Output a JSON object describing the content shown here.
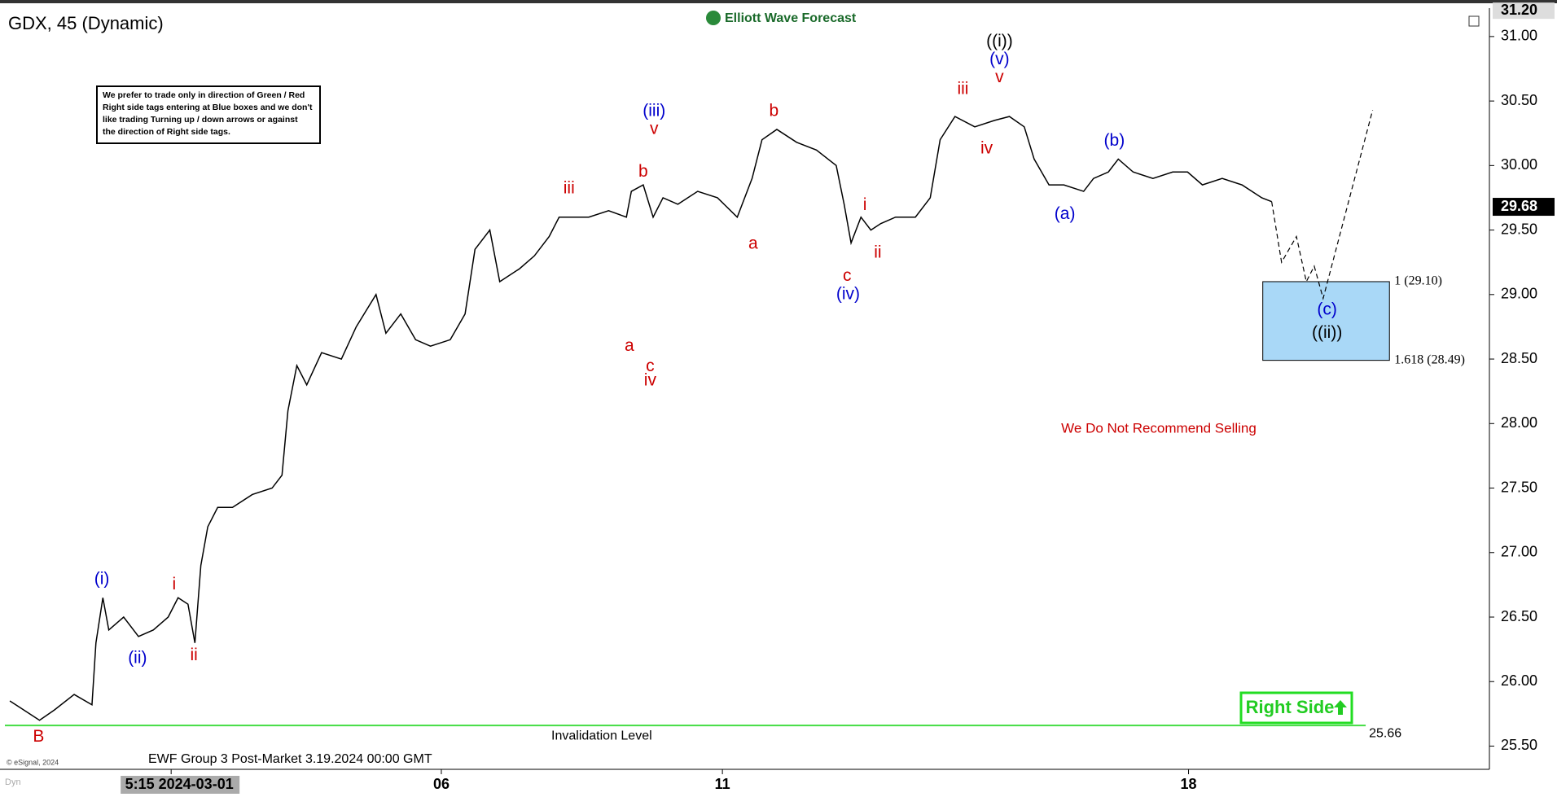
{
  "chart_data": {
    "type": "line",
    "title": "GDX, 45 (Dynamic)",
    "logo": "Elliott Wave Forecast",
    "note": [
      "We prefer to trade only in direction of Green / Red",
      "Right side tags entering at Blue boxes and we don't",
      "like trading Turning up / down arrows or against",
      "the direction of Right side tags."
    ],
    "recommendation": "We Do Not Recommend Selling",
    "right_side": "Right Side",
    "footer": "EWF Group 3 Post-Market 3.19.2024 00:00 GMT",
    "copyright": "© eSignal, 2024",
    "mode": "Dyn",
    "color": "#000000",
    "x": [
      0.5,
      1.5,
      3.5,
      5,
      7,
      8.8,
      9.2,
      9.9,
      10.5,
      12,
      13.5,
      15,
      16.5,
      17.5,
      18.5,
      19.2,
      19.8,
      20.5,
      21.5,
      23,
      25,
      27,
      28,
      28.6,
      29.5,
      30.5,
      32,
      34,
      35.5,
      37.5,
      38.5,
      40,
      41.5,
      43,
      45,
      46.5,
      47.5,
      49,
      50,
      52,
      53.5,
      55,
      56,
      57.5,
      59,
      61,
      62.8,
      63.3,
      64.5,
      65.5,
      66.5,
      68,
      70,
      72,
      74,
      75.5,
      76.5,
      78,
      80,
      82,
      84,
      84.8,
      85.5,
      86.5,
      87.5,
      88.5,
      90,
      92,
      93.5,
      94.5,
      96,
      98,
      100,
      101.5,
      103,
      104,
      105.5,
      107,
      109,
      110,
      111.5,
      112.5,
      114,
      116,
      118,
      119.5,
      121,
      123,
      125,
      127,
      128
    ],
    "values": [
      25.85,
      25.8,
      25.7,
      25.78,
      25.9,
      25.82,
      26.3,
      26.65,
      26.4,
      26.5,
      26.35,
      26.4,
      26.5,
      26.65,
      26.6,
      26.3,
      26.9,
      27.2,
      27.35,
      27.35,
      27.45,
      27.5,
      27.6,
      28.1,
      28.45,
      28.3,
      28.55,
      28.5,
      28.75,
      29.0,
      28.7,
      28.85,
      28.65,
      28.6,
      28.65,
      28.85,
      29.35,
      29.5,
      29.1,
      29.2,
      29.3,
      29.45,
      29.6,
      29.6,
      29.6,
      29.65,
      29.6,
      29.8,
      29.85,
      29.6,
      29.75,
      29.7,
      29.8,
      29.75,
      29.6,
      29.9,
      30.2,
      30.28,
      30.18,
      30.12,
      30.0,
      29.7,
      29.4,
      29.6,
      29.5,
      29.55,
      29.6,
      29.6,
      29.75,
      30.2,
      30.38,
      30.3,
      30.35,
      30.38,
      30.3,
      30.05,
      29.85,
      29.85,
      29.8,
      29.9,
      29.95,
      30.05,
      29.95,
      29.9,
      29.95,
      29.95,
      29.85,
      29.9,
      29.85,
      29.75,
      29.72
    ],
    "projection": {
      "x": [
        128,
        129,
        130.5,
        131.5,
        132.3,
        133.2,
        138.2
      ],
      "values": [
        29.72,
        29.25,
        29.45,
        29.1,
        29.22,
        28.97,
        30.43
      ]
    },
    "target_zone": {
      "x": [
        127.1,
        139.9
      ],
      "color": "#a9d8f7",
      "levels": [
        {
          "value": 29.1,
          "label": "1 (29.10)"
        },
        {
          "value": 28.49,
          "label": "1.618 (28.49)"
        }
      ]
    },
    "invalidation": {
      "value": 25.66,
      "label": "Invalidation Level",
      "label_x": 60.3,
      "x": [
        0,
        137.5
      ],
      "color": "#44dd44"
    },
    "last_price": 29.68,
    "top_tag": {
      "value": 31.2,
      "label": "31.20"
    },
    "xlim": [
      0,
      150
    ],
    "ylim": [
      25.32,
      31.22
    ],
    "yticks": [
      {
        "value": 25.5,
        "label": "25.50"
      },
      {
        "value": 26,
        "label": "26.00"
      },
      {
        "value": 26.5,
        "label": "26.50"
      },
      {
        "value": 27,
        "label": "27.00"
      },
      {
        "value": 27.5,
        "label": "27.50"
      },
      {
        "value": 28,
        "label": "28.00"
      },
      {
        "value": 28.5,
        "label": "28.50"
      },
      {
        "value": 29,
        "label": "29.00"
      },
      {
        "value": 29.5,
        "label": "29.50"
      },
      {
        "value": 30,
        "label": "30.00"
      },
      {
        "value": 30.5,
        "label": "30.50"
      },
      {
        "value": 31,
        "label": "31.00"
      }
    ],
    "xticks": [
      {
        "value": 16.8,
        "label": "5:15 2024-03-01"
      },
      {
        "value": 44.1,
        "label": "06"
      },
      {
        "value": 72.5,
        "label": "11"
      },
      {
        "value": 119.6,
        "label": "18"
      }
    ],
    "annotations": [
      {
        "text": "B",
        "x": 3.4,
        "y": 25.57,
        "color": "#cc0000"
      },
      {
        "text": "(i)",
        "x": 9.8,
        "y": 26.79,
        "color": "#0000cc"
      },
      {
        "text": "(ii)",
        "x": 13.4,
        "y": 26.18,
        "color": "#0000cc"
      },
      {
        "text": "i",
        "x": 17.1,
        "y": 26.75,
        "color": "#cc0000"
      },
      {
        "text": "ii",
        "x": 19.1,
        "y": 26.2,
        "color": "#cc0000"
      },
      {
        "text": "iii",
        "x": 57,
        "y": 29.82,
        "color": "#cc0000"
      },
      {
        "text": "a",
        "x": 63.1,
        "y": 28.6,
        "color": "#cc0000"
      },
      {
        "text": "b",
        "x": 64.5,
        "y": 29.95,
        "color": "#cc0000"
      },
      {
        "text": "c",
        "x": 65.2,
        "y": 28.44,
        "color": "#cc0000"
      },
      {
        "text": "iv",
        "x": 65.2,
        "y": 28.33,
        "color": "#cc0000"
      },
      {
        "text": "(iii)",
        "x": 65.6,
        "y": 30.42,
        "color": "#0000cc"
      },
      {
        "text": "v",
        "x": 65.6,
        "y": 30.28,
        "color": "#cc0000"
      },
      {
        "text": "a",
        "x": 75.6,
        "y": 29.39,
        "color": "#cc0000"
      },
      {
        "text": "b",
        "x": 77.7,
        "y": 30.42,
        "color": "#cc0000"
      },
      {
        "text": "c",
        "x": 85.1,
        "y": 29.14,
        "color": "#cc0000"
      },
      {
        "text": "(iv)",
        "x": 85.2,
        "y": 29.0,
        "color": "#0000cc"
      },
      {
        "text": "i",
        "x": 86.9,
        "y": 29.69,
        "color": "#cc0000"
      },
      {
        "text": "ii",
        "x": 88.2,
        "y": 29.32,
        "color": "#cc0000"
      },
      {
        "text": "iii",
        "x": 96.8,
        "y": 30.59,
        "color": "#cc0000"
      },
      {
        "text": "iv",
        "x": 99.2,
        "y": 30.13,
        "color": "#cc0000"
      },
      {
        "text": "v",
        "x": 100.5,
        "y": 30.68,
        "color": "#cc0000"
      },
      {
        "text": "(v)",
        "x": 100.5,
        "y": 30.82,
        "color": "#0000cc"
      },
      {
        "text": "((i))",
        "x": 100.5,
        "y": 30.96,
        "color": "#000000"
      },
      {
        "text": "(a)",
        "x": 107.1,
        "y": 29.62,
        "color": "#0000cc"
      },
      {
        "text": "(b)",
        "x": 112.1,
        "y": 30.19,
        "color": "#0000cc"
      },
      {
        "text": "(c)",
        "x": 133.6,
        "y": 28.88,
        "color": "#0000cc"
      },
      {
        "text": "((ii))",
        "x": 133.6,
        "y": 28.7,
        "color": "#000000"
      }
    ]
  }
}
